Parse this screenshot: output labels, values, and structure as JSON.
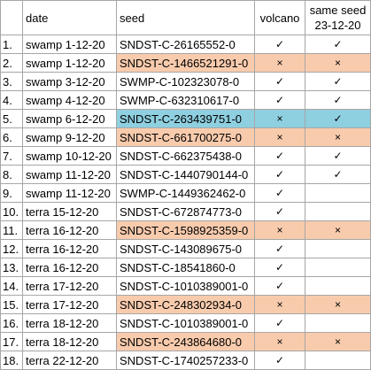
{
  "headers": {
    "num": "",
    "date": "date",
    "seed": "seed",
    "volcano": "volcano",
    "same_seed_line1": "same seed",
    "same_seed_line2": "23-12-20"
  },
  "colors": {
    "orange_highlight": "#f8cbad",
    "blue_highlight": "#8ecfe0",
    "grid": "#a6a6a6"
  },
  "rows": [
    {
      "num": "1.",
      "date": "swamp 1-12-20",
      "seed": "SNDST-C-26165552-0",
      "volcano": "✓",
      "same": "✓",
      "highlight": "none"
    },
    {
      "num": "2.",
      "date": "swamp 1-12-20",
      "seed": "SNDST-C-1466521291-0",
      "volcano": "×",
      "same": "×",
      "highlight": "orange"
    },
    {
      "num": "3.",
      "date": "swamp 3-12-20",
      "seed": "SWMP-C-102323078-0",
      "volcano": "✓",
      "same": "✓",
      "highlight": "none"
    },
    {
      "num": "4.",
      "date": "swamp 4-12-20",
      "seed": "SWMP-C-632310617-0",
      "volcano": "✓",
      "same": "✓",
      "highlight": "none"
    },
    {
      "num": "5.",
      "date": "swamp 6-12-20",
      "seed": "SNDST-C-263439751-0",
      "volcano": "×",
      "same": "✓",
      "highlight": "blue"
    },
    {
      "num": "6.",
      "date": "swamp 9-12-20",
      "seed": "SNDST-C-661700275-0",
      "volcano": "×",
      "same": "×",
      "highlight": "orange"
    },
    {
      "num": "7.",
      "date": "swamp 10-12-20",
      "seed": "SNDST-C-662375438-0",
      "volcano": "✓",
      "same": "✓",
      "highlight": "none"
    },
    {
      "num": "8.",
      "date": "swamp 11-12-20",
      "seed": "SNDST-C-1440790144-0",
      "volcano": "✓",
      "same": "✓",
      "highlight": "none"
    },
    {
      "num": "9.",
      "date": "swamp 11-12-20",
      "seed": "SWMP-C-1449362462-0",
      "volcano": "✓",
      "same": "",
      "highlight": "none"
    },
    {
      "num": "10.",
      "date": "terra 15-12-20",
      "seed": "SNDST-C-672874773-0",
      "volcano": "✓",
      "same": "",
      "highlight": "none"
    },
    {
      "num": "11.",
      "date": "terra 16-12-20",
      "seed": "SNDST-C-1598925359-0",
      "volcano": "×",
      "same": "×",
      "highlight": "orange"
    },
    {
      "num": "12.",
      "date": "terra 16-12-20",
      "seed": "SNDST-C-143089675-0",
      "volcano": "✓",
      "same": "",
      "highlight": "none"
    },
    {
      "num": "13.",
      "date": "terra 16-12-20",
      "seed": "SNDST-C-18541860-0",
      "volcano": "✓",
      "same": "",
      "highlight": "none"
    },
    {
      "num": "14.",
      "date": "terra 17-12-20",
      "seed": "SNDST-C-1010389001-0",
      "volcano": "✓",
      "same": "",
      "highlight": "none"
    },
    {
      "num": "15.",
      "date": "terra 17-12-20",
      "seed": "SNDST-C-248302934-0",
      "volcano": "×",
      "same": "×",
      "highlight": "orange"
    },
    {
      "num": "16.",
      "date": "terra 18-12-20",
      "seed": "SNDST-C-1010389001-0",
      "volcano": "✓",
      "same": "",
      "highlight": "none"
    },
    {
      "num": "17.",
      "date": "terra 18-12-20",
      "seed": "SNDST-C-243864680-0",
      "volcano": "×",
      "same": "×",
      "highlight": "orange"
    },
    {
      "num": "18.",
      "date": "terra 22-12-20",
      "seed": "SNDST-C-1740257233-0",
      "volcano": "✓",
      "same": "",
      "highlight": "none"
    }
  ]
}
